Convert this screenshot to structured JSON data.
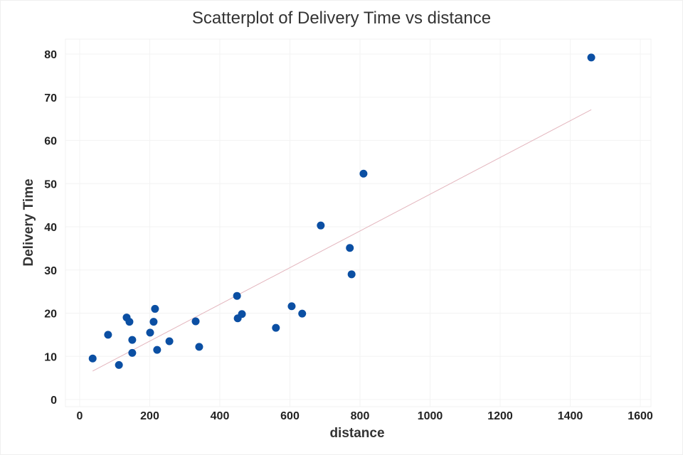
{
  "chart_data": {
    "type": "scatter",
    "title": "Scatterplot of Delivery Time vs distance",
    "xlabel": "distance",
    "ylabel": "Delivery Time",
    "xlim": [
      0,
      1600
    ],
    "ylim": [
      0,
      80
    ],
    "x_ticks": [
      0,
      200,
      400,
      600,
      800,
      1000,
      1200,
      1400,
      1600
    ],
    "y_ticks": [
      0,
      10,
      20,
      30,
      40,
      50,
      60,
      70,
      80
    ],
    "grid": true,
    "legend": null,
    "marker_color": "#0b4fa3",
    "trendline_color": "#e8b8c0",
    "series": [
      {
        "name": "Delivery Time",
        "points": [
          {
            "x": 37,
            "y": 9.5
          },
          {
            "x": 81,
            "y": 15.0
          },
          {
            "x": 112,
            "y": 8.0
          },
          {
            "x": 134,
            "y": 19.0
          },
          {
            "x": 142,
            "y": 18.0
          },
          {
            "x": 150,
            "y": 13.8
          },
          {
            "x": 150,
            "y": 10.8
          },
          {
            "x": 201,
            "y": 15.5
          },
          {
            "x": 211,
            "y": 18.0
          },
          {
            "x": 215,
            "y": 21.0
          },
          {
            "x": 221,
            "y": 11.5
          },
          {
            "x": 256,
            "y": 13.5
          },
          {
            "x": 331,
            "y": 18.1
          },
          {
            "x": 341,
            "y": 12.2
          },
          {
            "x": 449,
            "y": 24.0
          },
          {
            "x": 451,
            "y": 18.8
          },
          {
            "x": 463,
            "y": 19.8
          },
          {
            "x": 560,
            "y": 16.6
          },
          {
            "x": 605,
            "y": 21.6
          },
          {
            "x": 635,
            "y": 19.9
          },
          {
            "x": 688,
            "y": 40.3
          },
          {
            "x": 771,
            "y": 35.1
          },
          {
            "x": 776,
            "y": 29.0
          },
          {
            "x": 810,
            "y": 52.3
          },
          {
            "x": 1460,
            "y": 79.2
          }
        ]
      }
    ],
    "trendline": {
      "x0": 37,
      "y0": 6.6,
      "x1": 1460,
      "y1": 67.1
    }
  }
}
